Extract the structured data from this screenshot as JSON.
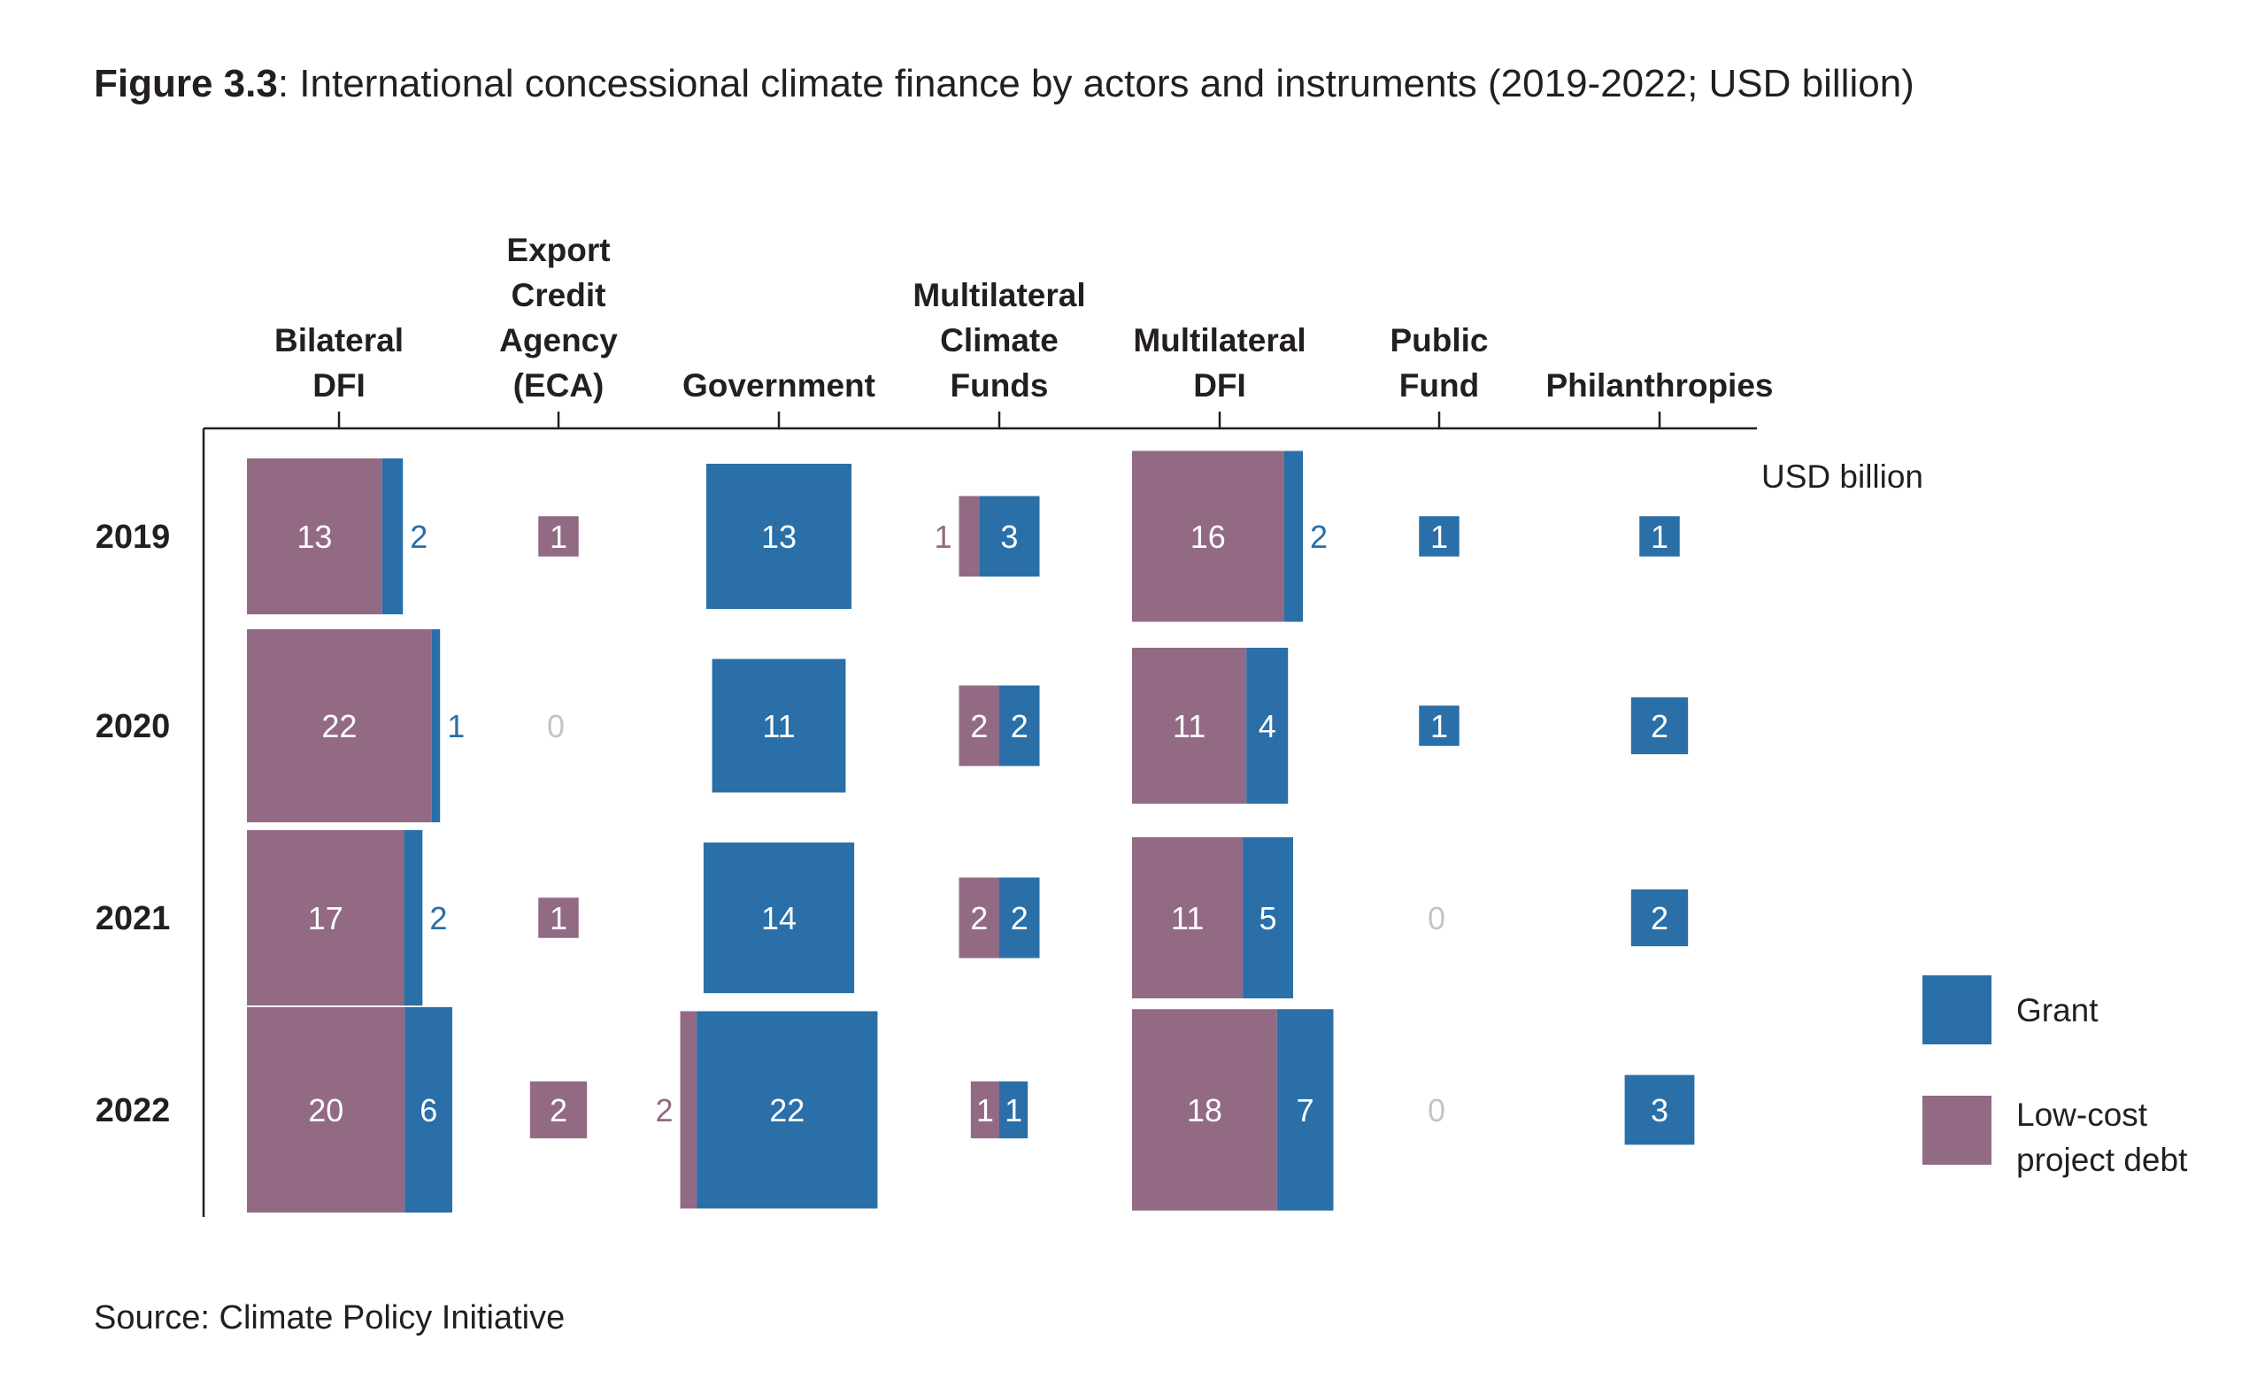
{
  "header": {
    "figure_label": "Figure 3.3",
    "title_rest": ": International concessional climate finance by actors and instruments (2019-2022; USD billion)"
  },
  "source": "Source: Climate Policy Initiative",
  "colors": {
    "grant": "#2a6fa8",
    "debt": "#926a84",
    "zero_text": "#c4c4c4",
    "axis": "#231f20"
  },
  "chart_data": {
    "type": "proportional-area matrix",
    "title": "International concessional climate finance by actors and instruments (2019-2022; USD billion)",
    "unit_label": "USD billion",
    "actors": [
      {
        "key": "bilateral_dfi",
        "lines": [
          "Bilateral",
          "DFI"
        ]
      },
      {
        "key": "eca",
        "lines": [
          "Export",
          "Credit",
          "Agency",
          "(ECA)"
        ]
      },
      {
        "key": "government",
        "lines": [
          "Government"
        ]
      },
      {
        "key": "mcf",
        "lines": [
          "Multilateral",
          "Climate",
          "Funds"
        ]
      },
      {
        "key": "multilateral_dfi",
        "lines": [
          "Multilateral",
          "DFI"
        ]
      },
      {
        "key": "public_fund",
        "lines": [
          "Public",
          "Fund"
        ]
      },
      {
        "key": "philanthropies",
        "lines": [
          "Philanthropies"
        ]
      }
    ],
    "years": [
      "2019",
      "2020",
      "2021",
      "2022"
    ],
    "series": [
      {
        "name": "Grant",
        "key": "grant"
      },
      {
        "name": "Low-cost project debt",
        "key": "debt"
      }
    ],
    "legend_lines": {
      "grant": [
        "Grant"
      ],
      "debt": [
        "Low-cost",
        "project debt"
      ]
    },
    "values": {
      "debt": [
        [
          13,
          1,
          0,
          1,
          16,
          0,
          0
        ],
        [
          22,
          0,
          0,
          2,
          11,
          0,
          0
        ],
        [
          17,
          1,
          0,
          2,
          11,
          0,
          0
        ],
        [
          20,
          2,
          2,
          1,
          18,
          0,
          0
        ]
      ],
      "grant": [
        [
          2,
          0,
          13,
          3,
          2,
          1,
          1
        ],
        [
          1,
          0,
          11,
          2,
          4,
          1,
          2
        ],
        [
          2,
          0,
          14,
          2,
          5,
          0,
          2
        ],
        [
          6,
          0,
          22,
          1,
          7,
          0,
          3
        ]
      ]
    },
    "zero_labels": [
      {
        "year_index": 1,
        "actor_index": 1,
        "text": "0"
      },
      {
        "year_index": 2,
        "actor_index": 5,
        "text": "0"
      },
      {
        "year_index": 3,
        "actor_index": 5,
        "text": "0"
      }
    ]
  }
}
